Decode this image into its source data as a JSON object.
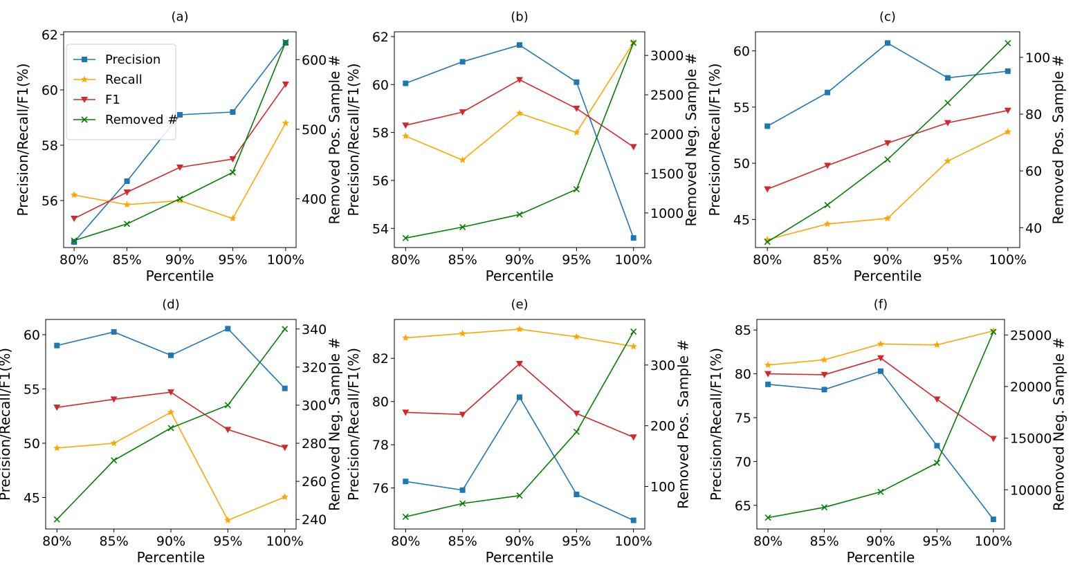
{
  "chart_data": [
    {
      "panel": "(a)",
      "title": "(a)",
      "type": "line",
      "categories": [
        "80%",
        "85%",
        "90%",
        "95%",
        "100%"
      ],
      "xlabel": "Percentile",
      "ylabel": "Precision/Recall/F1(%)",
      "y2label": "Removed Pos. Sample #",
      "ylim": [
        54.3,
        62.1
      ],
      "yticks": [
        56,
        58,
        60,
        62
      ],
      "y2lim": [
        330,
        640
      ],
      "y2ticks": [
        400,
        500,
        600
      ],
      "series": [
        {
          "name": "Precision",
          "axis": "left",
          "values": [
            54.5,
            56.7,
            59.1,
            59.2,
            61.7
          ]
        },
        {
          "name": "Recall",
          "axis": "left",
          "values": [
            56.2,
            55.85,
            56.0,
            55.35,
            58.8
          ]
        },
        {
          "name": "F1",
          "axis": "left",
          "values": [
            55.35,
            56.3,
            57.2,
            57.5,
            60.2
          ]
        },
        {
          "name": "Removed #",
          "axis": "right",
          "values": [
            340,
            364,
            400,
            438,
            625
          ]
        }
      ]
    },
    {
      "panel": "(b)",
      "title": "(b)",
      "type": "line",
      "categories": [
        "80%",
        "85%",
        "90%",
        "95%",
        "100%"
      ],
      "xlabel": "Percentile",
      "ylabel": "Precision/Recall/F1(%)",
      "y2label": "Removed Neg. Sample #",
      "ylim": [
        53.2,
        62.2
      ],
      "yticks": [
        54,
        56,
        58,
        60,
        62
      ],
      "y2lim": [
        560,
        3300
      ],
      "y2ticks": [
        1000,
        1500,
        2000,
        2500,
        3000
      ],
      "series": [
        {
          "name": "Precision",
          "axis": "left",
          "values": [
            60.05,
            60.95,
            61.65,
            60.1,
            53.6
          ]
        },
        {
          "name": "Recall",
          "axis": "left",
          "values": [
            57.85,
            56.85,
            58.8,
            58.0,
            61.75
          ]
        },
        {
          "name": "F1",
          "axis": "left",
          "values": [
            58.3,
            58.85,
            60.2,
            59.0,
            57.4
          ]
        },
        {
          "name": "Removed #",
          "axis": "right",
          "values": [
            680,
            820,
            980,
            1300,
            3160
          ]
        }
      ]
    },
    {
      "panel": "(c)",
      "title": "(c)",
      "type": "line",
      "categories": [
        "80%",
        "85%",
        "90%",
        "95%",
        "100%"
      ],
      "xlabel": "Percentile",
      "ylabel": "Precision/Recall/F1(%)",
      "y2label": "Removed Pos. Sample #",
      "ylim": [
        42.5,
        61.7
      ],
      "yticks": [
        45,
        50,
        55,
        60
      ],
      "y2lim": [
        33,
        109
      ],
      "y2ticks": [
        40,
        60,
        80,
        100
      ],
      "series": [
        {
          "name": "Precision",
          "axis": "left",
          "values": [
            53.3,
            56.3,
            60.7,
            57.6,
            58.2
          ]
        },
        {
          "name": "Recall",
          "axis": "left",
          "values": [
            43.2,
            44.6,
            45.1,
            50.2,
            52.8
          ]
        },
        {
          "name": "F1",
          "axis": "left",
          "values": [
            47.7,
            49.8,
            51.8,
            53.6,
            54.7
          ]
        },
        {
          "name": "Removed #",
          "axis": "right",
          "values": [
            35,
            48,
            64,
            84,
            105
          ]
        }
      ]
    },
    {
      "panel": "(d)",
      "title": "(d)",
      "type": "line",
      "categories": [
        "80%",
        "85%",
        "90%",
        "95%",
        "100%"
      ],
      "xlabel": "Percentile",
      "ylabel": "Precision/Recall/F1(%)",
      "y2label": "Removed Neg. Sample #",
      "ylim": [
        42.1,
        61.4
      ],
      "yticks": [
        45,
        50,
        55,
        60
      ],
      "y2lim": [
        235,
        345
      ],
      "y2ticks": [
        240,
        260,
        280,
        300,
        320,
        340
      ],
      "series": [
        {
          "name": "Precision",
          "axis": "left",
          "values": [
            59.0,
            60.25,
            58.1,
            60.55,
            55.05
          ]
        },
        {
          "name": "Recall",
          "axis": "left",
          "values": [
            49.55,
            50.0,
            52.85,
            42.9,
            45.05
          ]
        },
        {
          "name": "F1",
          "axis": "left",
          "values": [
            53.3,
            54.05,
            54.7,
            51.25,
            49.6
          ]
        },
        {
          "name": "Removed #",
          "axis": "right",
          "values": [
            240,
            271,
            288,
            300,
            340
          ]
        }
      ]
    },
    {
      "panel": "(e)",
      "title": "(e)",
      "type": "line",
      "categories": [
        "80%",
        "85%",
        "90%",
        "95%",
        "100%"
      ],
      "xlabel": "Percentile",
      "ylabel": "Precision/Recall/F1(%)",
      "y2label": "Removed Pos. Sample #",
      "ylim": [
        74.1,
        83.8
      ],
      "yticks": [
        76,
        78,
        80,
        82
      ],
      "y2lim": [
        30,
        375
      ],
      "y2ticks": [
        100,
        200,
        300
      ],
      "series": [
        {
          "name": "Precision",
          "axis": "left",
          "values": [
            76.3,
            75.9,
            80.2,
            75.7,
            74.5
          ]
        },
        {
          "name": "Recall",
          "axis": "left",
          "values": [
            82.95,
            83.15,
            83.35,
            83.0,
            82.55
          ]
        },
        {
          "name": "F1",
          "axis": "left",
          "values": [
            79.5,
            79.4,
            81.75,
            79.45,
            78.35
          ]
        },
        {
          "name": "Removed #",
          "axis": "right",
          "values": [
            50,
            72,
            85,
            190,
            355
          ]
        }
      ]
    },
    {
      "panel": "(f)",
      "title": "(f)",
      "type": "line",
      "categories": [
        "80%",
        "85%",
        "90%",
        "95%",
        "100%"
      ],
      "xlabel": "Percentile",
      "ylabel": "Precision/Recall/F1(%)",
      "y2label": "Removed Neg. Sample #",
      "ylim": [
        62.3,
        86.2
      ],
      "yticks": [
        65,
        70,
        75,
        80,
        85
      ],
      "y2lim": [
        6200,
        26500
      ],
      "y2ticks": [
        10000,
        15000,
        20000,
        25000
      ],
      "series": [
        {
          "name": "Precision",
          "axis": "left",
          "values": [
            78.8,
            78.2,
            80.3,
            71.8,
            63.4
          ]
        },
        {
          "name": "Recall",
          "axis": "left",
          "values": [
            81.0,
            81.6,
            83.4,
            83.3,
            84.9
          ]
        },
        {
          "name": "F1",
          "axis": "left",
          "values": [
            80.0,
            79.9,
            81.8,
            77.1,
            72.6
          ]
        },
        {
          "name": "Removed #",
          "axis": "right",
          "values": [
            7300,
            8300,
            9800,
            12600,
            25300
          ]
        }
      ]
    }
  ],
  "legend": {
    "placement": "top-left of panel (a)",
    "entries": [
      {
        "name": "Precision",
        "marker": "square"
      },
      {
        "name": "Recall",
        "marker": "star"
      },
      {
        "name": "F1",
        "marker": "triangle-down"
      },
      {
        "name": "Removed #",
        "marker": "x"
      }
    ]
  },
  "colors": {
    "Precision": "#1f77b4",
    "Recall": "#ffa500",
    "F1": "#d62728",
    "Removed #": "#008000"
  }
}
